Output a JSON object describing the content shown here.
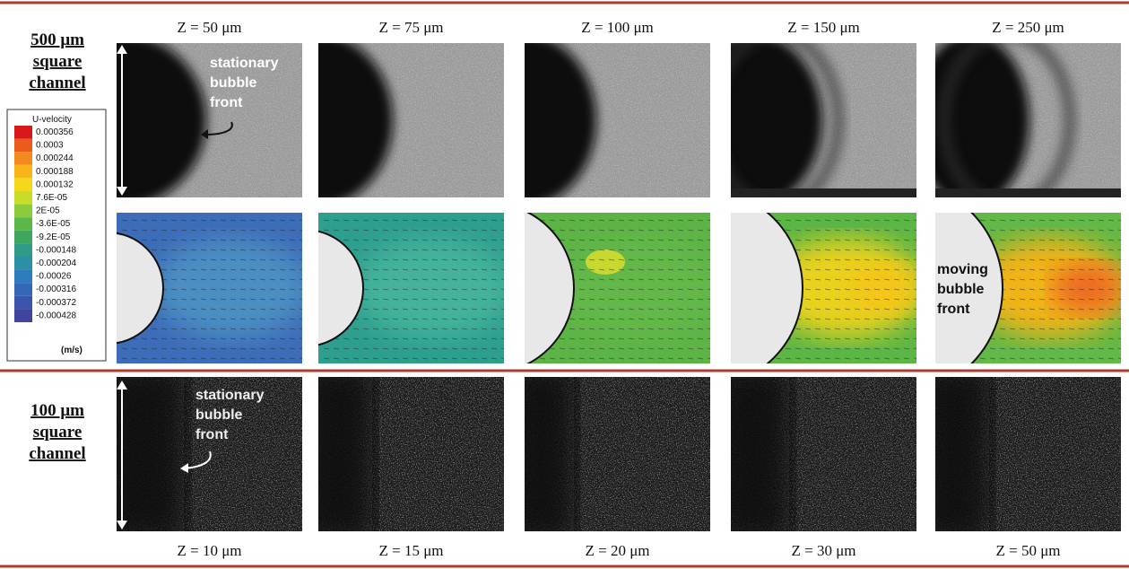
{
  "top_row": {
    "label": [
      "500 μm",
      "square",
      "channel"
    ],
    "columns": [
      "Z = 50 μm",
      "Z = 75 μm",
      "Z = 100 μm",
      "Z = 150 μm",
      "Z = 250 μm"
    ]
  },
  "bottom_row": {
    "label": [
      "100 μm",
      "square",
      "channel"
    ],
    "columns": [
      "Z = 10 μm",
      "Z = 15 μm",
      "Z = 20 μm",
      "Z = 30 μm",
      "Z = 50 μm"
    ]
  },
  "legend": {
    "title": "U-velocity",
    "values": [
      "0.000356",
      "0.0003",
      "0.000244",
      "0.000188",
      "0.000132",
      "7.6E-05",
      "2E-05",
      "-3.6E-05",
      "-9.2E-05",
      "-0.000148",
      "-0.000204",
      "-0.00026",
      "-0.000316",
      "-0.000372",
      "-0.000428"
    ],
    "unit": "(m/s)"
  },
  "annotations": {
    "top_stationary": [
      "stationary",
      "bubble",
      "front"
    ],
    "moving": [
      "moving",
      "bubble",
      "front"
    ],
    "bottom_stationary": [
      "stationary",
      "bubble",
      "front"
    ]
  }
}
